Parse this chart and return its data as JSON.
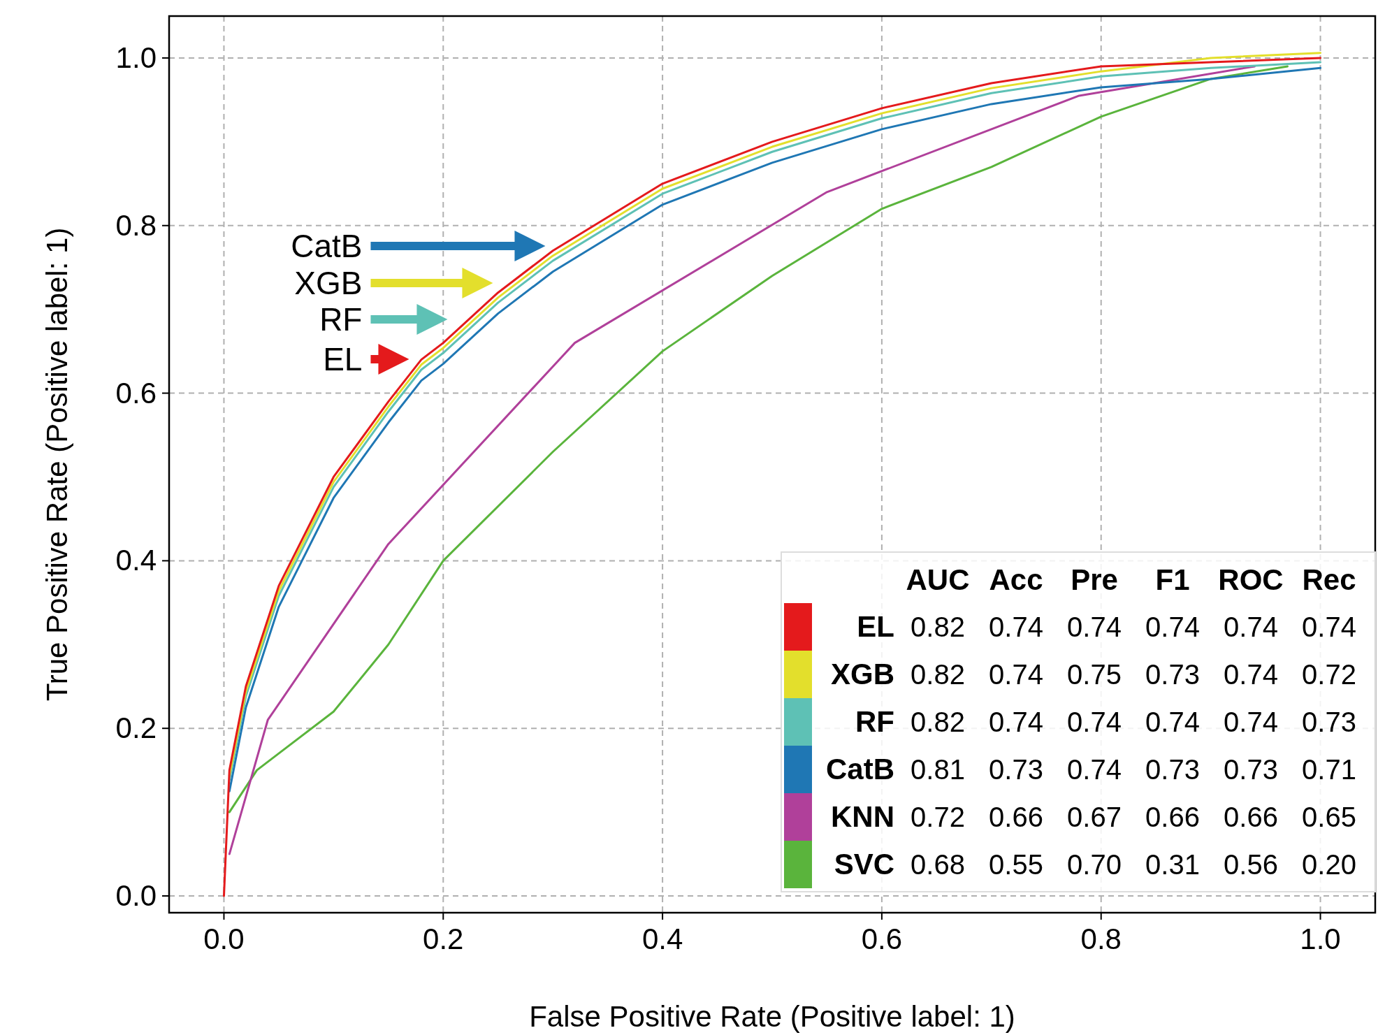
{
  "chart_data": {
    "type": "line",
    "xlabel": "False Positive Rate (Positive label: 1)",
    "ylabel": "True Positive Rate (Positive label: 1)",
    "xlim": [
      -0.05,
      1.05
    ],
    "ylim": [
      -0.02,
      1.05
    ],
    "xticks": [
      {
        "value": 0,
        "label": "0.0"
      },
      {
        "value": 0.2,
        "label": "0.2"
      },
      {
        "value": 0.4,
        "label": "0.4"
      },
      {
        "value": 0.6,
        "label": "0.6"
      },
      {
        "value": 0.8,
        "label": "0.8"
      },
      {
        "value": 1,
        "label": "1.0"
      }
    ],
    "yticks": [
      {
        "value": 0,
        "label": "0.0"
      },
      {
        "value": 0.2,
        "label": "0.2"
      },
      {
        "value": 0.4,
        "label": "0.4"
      },
      {
        "value": 0.6,
        "label": "0.6"
      },
      {
        "value": 0.8,
        "label": "0.8"
      },
      {
        "value": 1,
        "label": "1.0"
      }
    ],
    "grid": true,
    "legend": "bottom right",
    "line_style": "solid",
    "series": [
      {
        "name": "EL",
        "color": "#e41a1c",
        "x": [
          0,
          0.005,
          0.02,
          0.05,
          0.1,
          0.15,
          0.18,
          0.2,
          0.25,
          0.3,
          0.4,
          0.5,
          0.6,
          0.7,
          0.8,
          0.9,
          1
        ],
        "values": [
          0,
          0.15,
          0.25,
          0.37,
          0.5,
          0.59,
          0.64,
          0.66,
          0.72,
          0.77,
          0.85,
          0.9,
          0.94,
          0.97,
          0.99,
          0.995,
          1
        ]
      },
      {
        "name": "XGB",
        "color": "#e3df2c",
        "x": [
          0.005,
          0.02,
          0.05,
          0.1,
          0.15,
          0.18,
          0.2,
          0.25,
          0.3,
          0.4,
          0.5,
          0.6,
          0.7,
          0.8,
          0.9,
          1
        ],
        "values": [
          0.144,
          0.244,
          0.364,
          0.494,
          0.584,
          0.634,
          0.654,
          0.714,
          0.764,
          0.844,
          0.894,
          0.934,
          0.964,
          0.984,
          1.0,
          1.006
        ]
      },
      {
        "name": "RF",
        "color": "#5ec1b5",
        "x": [
          0.005,
          0.02,
          0.05,
          0.1,
          0.15,
          0.18,
          0.2,
          0.25,
          0.3,
          0.4,
          0.5,
          0.6,
          0.7,
          0.8,
          0.9,
          1
        ],
        "values": [
          0.138,
          0.238,
          0.358,
          0.488,
          0.578,
          0.628,
          0.648,
          0.708,
          0.758,
          0.838,
          0.888,
          0.928,
          0.958,
          0.978,
          0.988,
          0.995
        ]
      },
      {
        "name": "CatB",
        "color": "#1f77b4",
        "x": [
          0.005,
          0.02,
          0.05,
          0.1,
          0.15,
          0.18,
          0.2,
          0.25,
          0.3,
          0.4,
          0.5,
          0.6,
          0.7,
          0.8,
          0.9,
          1
        ],
        "values": [
          0.125,
          0.225,
          0.345,
          0.475,
          0.565,
          0.615,
          0.635,
          0.695,
          0.745,
          0.825,
          0.875,
          0.915,
          0.945,
          0.965,
          0.975,
          0.988
        ]
      },
      {
        "name": "KNN",
        "color": "#b0409a",
        "x": [
          0.005,
          0.04,
          0.15,
          0.32,
          0.55,
          0.78,
          0.94
        ],
        "values": [
          0.05,
          0.21,
          0.42,
          0.66,
          0.84,
          0.955,
          0.99
        ]
      },
      {
        "name": "SVC",
        "color": "#5ab43c",
        "x": [
          0.005,
          0.03,
          0.05,
          0.1,
          0.15,
          0.2,
          0.3,
          0.4,
          0.5,
          0.55,
          0.6,
          0.7,
          0.8,
          0.9,
          0.97
        ],
        "values": [
          0.1,
          0.15,
          0.17,
          0.22,
          0.3,
          0.4,
          0.53,
          0.65,
          0.74,
          0.78,
          0.82,
          0.87,
          0.93,
          0.975,
          0.99
        ]
      }
    ],
    "annotations": [
      "EL",
      "XGB",
      "RF",
      "CatB",
      "AUC",
      "Acc",
      "Pre",
      "F1",
      "ROC",
      "Rec",
      "0.82",
      "0.74",
      "0.74",
      "0.74",
      "0.74",
      "0.74",
      "0.82",
      "0.74",
      "0.75",
      "0.73",
      "0.74",
      "0.72",
      "0.82",
      "0.74",
      "0.74",
      "0.74",
      "0.74",
      "0.73",
      "0.81",
      "0.73",
      "0.74",
      "0.73",
      "0.73",
      "0.71",
      "0.72",
      "0.66",
      "0.67",
      "0.66",
      "0.66",
      "0.65",
      "0.68",
      "0.55",
      "0.70",
      "0.31",
      "0.56",
      "0.20"
    ]
  }
}
